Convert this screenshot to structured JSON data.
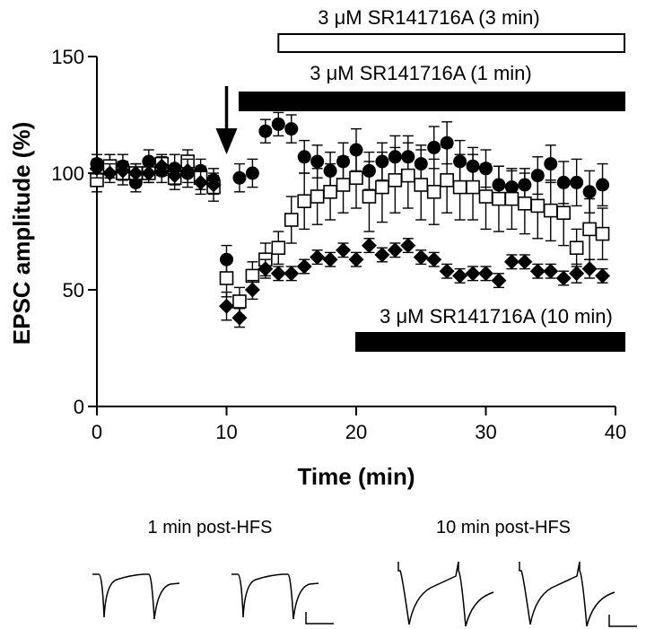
{
  "chart_data": {
    "type": "scatter",
    "xlabel": "Time (min)",
    "ylabel": "EPSC amplitude (%)",
    "xlim": [
      0,
      40
    ],
    "ylim": [
      0,
      150
    ],
    "xticks": [
      "0",
      "10",
      "20",
      "30",
      "40"
    ],
    "yticks": [
      "0",
      "50",
      "100",
      "150"
    ],
    "grid": false,
    "legend": "none",
    "annotation_arrow_time": 10,
    "drug_bars": [
      {
        "label": "3 μM SR141716A (3 min)",
        "start": 14,
        "end": 40,
        "fill": "open"
      },
      {
        "label": "3 μM SR141716A (1 min)",
        "start": 11,
        "end": 40,
        "fill": "filled"
      },
      {
        "label": "3 μM SR141716A (10 min)",
        "start": 20,
        "end": 40,
        "fill": "filled"
      }
    ],
    "series": [
      {
        "name": "1 min",
        "marker": "filled-circle",
        "x": [
          0,
          1,
          2,
          3,
          4,
          5,
          6,
          7,
          8,
          9,
          10,
          11,
          12,
          13,
          14,
          15,
          16,
          17,
          18,
          19,
          20,
          21,
          22,
          23,
          24,
          25,
          26,
          27,
          28,
          29,
          30,
          31,
          32,
          33,
          34,
          35,
          36,
          37,
          38,
          39
        ],
        "values": [
          104,
          103,
          103,
          96,
          105,
          101,
          102,
          100,
          101,
          97,
          63,
          98,
          100,
          118,
          121,
          119,
          107,
          105,
          101,
          105,
          110,
          101,
          105,
          107,
          107,
          104,
          111,
          113,
          105,
          103,
          102,
          95,
          94,
          95,
          99,
          104,
          96,
          96,
          92,
          95
        ],
        "errors": [
          4,
          5,
          5,
          4,
          5,
          5,
          6,
          6,
          5,
          5,
          6,
          6,
          6,
          5,
          5,
          6,
          7,
          7,
          8,
          8,
          9,
          8,
          8,
          9,
          9,
          8,
          9,
          9,
          9,
          8,
          8,
          8,
          7,
          7,
          8,
          8,
          9,
          10,
          9,
          9
        ]
      },
      {
        "name": "3 min",
        "marker": "open-square",
        "x": [
          0,
          1,
          2,
          3,
          4,
          5,
          6,
          7,
          8,
          9,
          10,
          11,
          12,
          13,
          14,
          15,
          16,
          17,
          18,
          19,
          20,
          21,
          22,
          23,
          24,
          25,
          26,
          27,
          28,
          29,
          30,
          31,
          32,
          33,
          34,
          35,
          36,
          37,
          38,
          39
        ],
        "values": [
          97,
          103,
          100,
          100,
          100,
          104,
          98,
          105,
          98,
          94,
          55,
          45,
          56,
          63,
          68,
          80,
          88,
          90,
          92,
          95,
          98,
          90,
          94,
          97,
          99,
          95,
          92,
          97,
          94,
          94,
          90,
          89,
          89,
          87,
          86,
          84,
          83,
          68,
          76,
          74
        ],
        "errors": [
          5,
          5,
          5,
          4,
          4,
          4,
          5,
          5,
          5,
          6,
          8,
          6,
          6,
          7,
          7,
          10,
          12,
          12,
          12,
          12,
          13,
          15,
          15,
          14,
          14,
          15,
          14,
          14,
          14,
          14,
          14,
          14,
          13,
          13,
          14,
          13,
          14,
          8,
          13,
          11
        ]
      },
      {
        "name": "10 min",
        "marker": "filled-diamond",
        "x": [
          0,
          1,
          2,
          3,
          4,
          5,
          6,
          7,
          8,
          9,
          10,
          11,
          12,
          13,
          14,
          15,
          16,
          17,
          18,
          19,
          20,
          21,
          22,
          23,
          24,
          25,
          26,
          27,
          28,
          29,
          30,
          31,
          32,
          33,
          34,
          35,
          36,
          37,
          38,
          39
        ],
        "values": [
          102,
          100,
          101,
          100,
          100,
          103,
          99,
          101,
          96,
          95,
          43,
          38,
          50,
          59,
          57,
          57,
          60,
          64,
          63,
          67,
          63,
          69,
          65,
          67,
          69,
          64,
          63,
          58,
          56,
          57,
          57,
          54,
          62,
          62,
          58,
          58,
          55,
          57,
          59,
          56
        ],
        "errors": [
          4,
          4,
          4,
          4,
          4,
          4,
          4,
          5,
          5,
          4,
          6,
          4,
          4,
          4,
          3,
          3,
          3,
          3,
          3,
          3,
          3,
          3,
          3,
          3,
          3,
          3,
          3,
          3,
          3,
          3,
          3,
          3,
          3,
          3,
          3,
          3,
          3,
          4,
          4,
          3
        ]
      }
    ]
  },
  "traces": {
    "left_label": "1 min post-HFS",
    "right_label": "10 min post-HFS"
  }
}
